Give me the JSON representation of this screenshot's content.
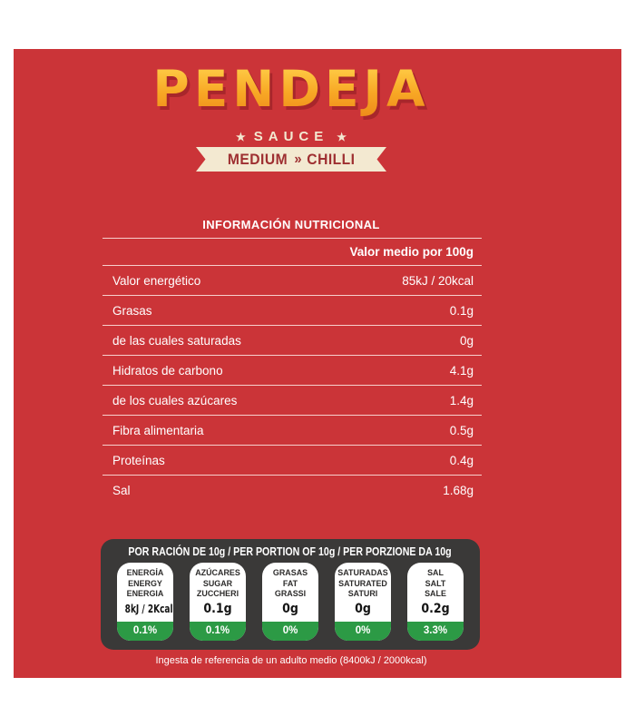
{
  "brand": {
    "name": "PENDEJA",
    "star": "★",
    "sauce_label": "SAUCE",
    "variant": {
      "left": "MEDIUM",
      "sep": "»",
      "right": "CHILLI"
    }
  },
  "nutrition_table": {
    "title": "INFORMACIÓN NUTRICIONAL",
    "column_header": "Valor medio por 100g",
    "rows": [
      {
        "label": "Valor energético",
        "value": "85kJ / 20kcal"
      },
      {
        "label": "Grasas",
        "value": "0.1g"
      },
      {
        "label": "de las cuales saturadas",
        "value": "0g"
      },
      {
        "label": "Hidratos de carbono",
        "value": "4.1g"
      },
      {
        "label": "de los cuales azúcares",
        "value": "1.4g"
      },
      {
        "label": "Fibra alimentaria",
        "value": "0.5g"
      },
      {
        "label": "Proteínas",
        "value": "0.4g"
      },
      {
        "label": "Sal",
        "value": "1.68g"
      }
    ]
  },
  "portion_panel": {
    "header": "POR RACIÓN DE 10g / PER PORTION OF 10g / PER PORZIONE DA 10g",
    "pills": [
      {
        "names": [
          "ENERGÍA",
          "ENERGY",
          "ENERGIA"
        ],
        "value": "8kJ / 2Kcal",
        "percent": "0.1%"
      },
      {
        "names": [
          "AZÚCARES",
          "SUGAR",
          "ZUCCHERI"
        ],
        "value": "0.1g",
        "percent": "0.1%"
      },
      {
        "names": [
          "GRASAS",
          "FAT",
          "GRASSI"
        ],
        "value": "0g",
        "percent": "0%"
      },
      {
        "names": [
          "SATURADAS",
          "SATURATED",
          "SATURI"
        ],
        "value": "0g",
        "percent": "0%"
      },
      {
        "names": [
          "SAL",
          "SALT",
          "SALE"
        ],
        "value": "0.2g",
        "percent": "3.3%"
      }
    ],
    "footnote": "Ingesta de referencia de un adulto medio (8400kJ / 2000kcal)"
  },
  "colors": {
    "background_red": "#cb3438",
    "logo_yellow": "#f8a623",
    "logo_shadow_red": "#a8262b",
    "cream": "#f3e9d1",
    "banner_text_red": "#9e2f31",
    "panel_dark": "#3a3938",
    "traffic_light_green": "#2c9a45",
    "white": "#ffffff"
  }
}
